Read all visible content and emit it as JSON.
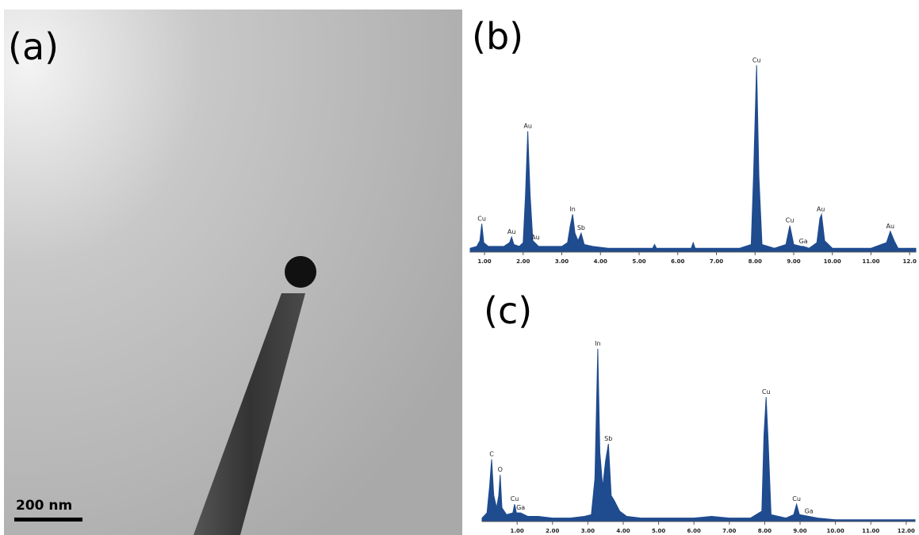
{
  "image": {
    "label": "(a)",
    "scale_bar": "200 nm"
  },
  "chart_data": [
    {
      "type": "area",
      "title": "(b)",
      "color": "#1f4b8f",
      "x": [
        0.63,
        0.8,
        0.88,
        0.93,
        0.98,
        1.1,
        1.3,
        1.5,
        1.65,
        1.7,
        1.76,
        1.9,
        2.0,
        2.06,
        2.12,
        2.18,
        2.25,
        2.3,
        2.4,
        2.7,
        3.0,
        3.15,
        3.22,
        3.28,
        3.34,
        3.42,
        3.5,
        3.58,
        3.8,
        4.2,
        4.6,
        5.0,
        5.35,
        5.4,
        5.45,
        6.0,
        6.35,
        6.4,
        6.45,
        7.0,
        7.6,
        7.9,
        7.96,
        8.04,
        8.1,
        8.18,
        8.5,
        8.8,
        8.9,
        9.0,
        9.2,
        9.25,
        9.4,
        9.6,
        9.68,
        9.72,
        9.8,
        10.0,
        10.5,
        11.0,
        11.4,
        11.5,
        11.6,
        11.7,
        12.16
      ],
      "values": [
        2,
        3,
        6,
        15,
        5,
        3,
        3,
        3,
        5,
        8,
        4,
        3,
        5,
        30,
        64,
        30,
        6,
        5,
        3,
        3,
        3,
        5,
        14,
        20,
        10,
        6,
        10,
        4,
        3,
        2,
        2,
        2,
        2,
        4,
        2,
        2,
        2,
        5,
        2,
        2,
        2,
        4,
        40,
        99,
        40,
        4,
        2,
        4,
        14,
        4,
        3,
        3,
        2,
        5,
        18,
        20,
        6,
        2,
        2,
        2,
        5,
        11,
        6,
        2,
        2
      ],
      "xlim": [
        0.63,
        12.16
      ],
      "ylim": [
        0,
        100
      ],
      "xticks": [
        {
          "value": 1,
          "label": "1.00"
        },
        {
          "value": 2,
          "label": "2.00"
        },
        {
          "value": 3,
          "label": "3.00"
        },
        {
          "value": 4,
          "label": "4.00"
        },
        {
          "value": 5,
          "label": "5.00"
        },
        {
          "value": 6,
          "label": "6.00"
        },
        {
          "value": 7,
          "label": "7.00"
        },
        {
          "value": 8,
          "label": "8.00"
        },
        {
          "value": 9,
          "label": "9.00"
        },
        {
          "value": 10,
          "label": "10.00"
        },
        {
          "value": 11,
          "label": "11.00"
        },
        {
          "value": 12,
          "label": "12.0"
        }
      ],
      "peaks": [
        {
          "label": "Cu",
          "x": 0.93,
          "y": 15
        },
        {
          "label": "Au",
          "x": 1.7,
          "y": 8
        },
        {
          "label": "Au",
          "x": 2.12,
          "y": 64
        },
        {
          "label": "Au",
          "x": 2.32,
          "y": 5
        },
        {
          "label": "In",
          "x": 3.28,
          "y": 20
        },
        {
          "label": "Sb",
          "x": 3.5,
          "y": 10
        },
        {
          "label": "Cu",
          "x": 8.04,
          "y": 99
        },
        {
          "label": "Cu",
          "x": 8.9,
          "y": 14
        },
        {
          "label": "Ga",
          "x": 9.25,
          "y": 3
        },
        {
          "label": "Au",
          "x": 9.7,
          "y": 20
        },
        {
          "label": "Au",
          "x": 11.5,
          "y": 11
        }
      ]
    },
    {
      "type": "area",
      "title": "(c)",
      "color": "#1f4b8f",
      "x": [
        0.01,
        0.15,
        0.22,
        0.28,
        0.34,
        0.42,
        0.48,
        0.52,
        0.57,
        0.7,
        0.88,
        0.93,
        0.98,
        1.1,
        1.3,
        1.6,
        2.0,
        2.5,
        2.9,
        3.1,
        3.2,
        3.28,
        3.34,
        3.42,
        3.5,
        3.58,
        3.66,
        3.75,
        3.9,
        4.1,
        4.5,
        5.0,
        5.5,
        6.0,
        6.5,
        7.0,
        7.6,
        7.92,
        7.98,
        8.04,
        8.1,
        8.18,
        8.6,
        8.82,
        8.9,
        8.98,
        9.25,
        9.5,
        10.0,
        11.0,
        12.25
      ],
      "values": [
        2,
        5,
        20,
        36,
        15,
        8,
        15,
        27,
        8,
        4,
        5,
        10,
        5,
        5,
        3,
        3,
        2,
        2,
        3,
        4,
        25,
        100,
        40,
        20,
        35,
        45,
        15,
        12,
        6,
        3,
        2,
        2,
        2,
        2,
        3,
        2,
        2,
        6,
        50,
        72,
        45,
        4,
        2,
        4,
        10,
        4,
        3,
        2,
        1,
        1,
        1
      ],
      "xlim": [
        0.01,
        12.25
      ],
      "ylim": [
        0,
        100
      ],
      "xticks": [
        {
          "value": 1,
          "label": "1.00"
        },
        {
          "value": 2,
          "label": "2.00"
        },
        {
          "value": 3,
          "label": "3.00"
        },
        {
          "value": 4,
          "label": "4.00"
        },
        {
          "value": 5,
          "label": "5.00"
        },
        {
          "value": 6,
          "label": "6.00"
        },
        {
          "value": 7,
          "label": "7.00"
        },
        {
          "value": 8,
          "label": "8.00"
        },
        {
          "value": 9,
          "label": "9.00"
        },
        {
          "value": 10,
          "label": "10.00"
        },
        {
          "value": 11,
          "label": "11.00"
        },
        {
          "value": 12,
          "label": "12.00"
        }
      ],
      "peaks": [
        {
          "label": "C",
          "x": 0.28,
          "y": 36
        },
        {
          "label": "O",
          "x": 0.52,
          "y": 27
        },
        {
          "label": "Cu",
          "x": 0.93,
          "y": 10
        },
        {
          "label": "Ga",
          "x": 1.1,
          "y": 5
        },
        {
          "label": "In",
          "x": 3.28,
          "y": 100
        },
        {
          "label": "Sb",
          "x": 3.58,
          "y": 45
        },
        {
          "label": "Cu",
          "x": 8.04,
          "y": 72
        },
        {
          "label": "Cu",
          "x": 8.9,
          "y": 10
        },
        {
          "label": "Ga",
          "x": 9.25,
          "y": 3
        }
      ]
    }
  ]
}
